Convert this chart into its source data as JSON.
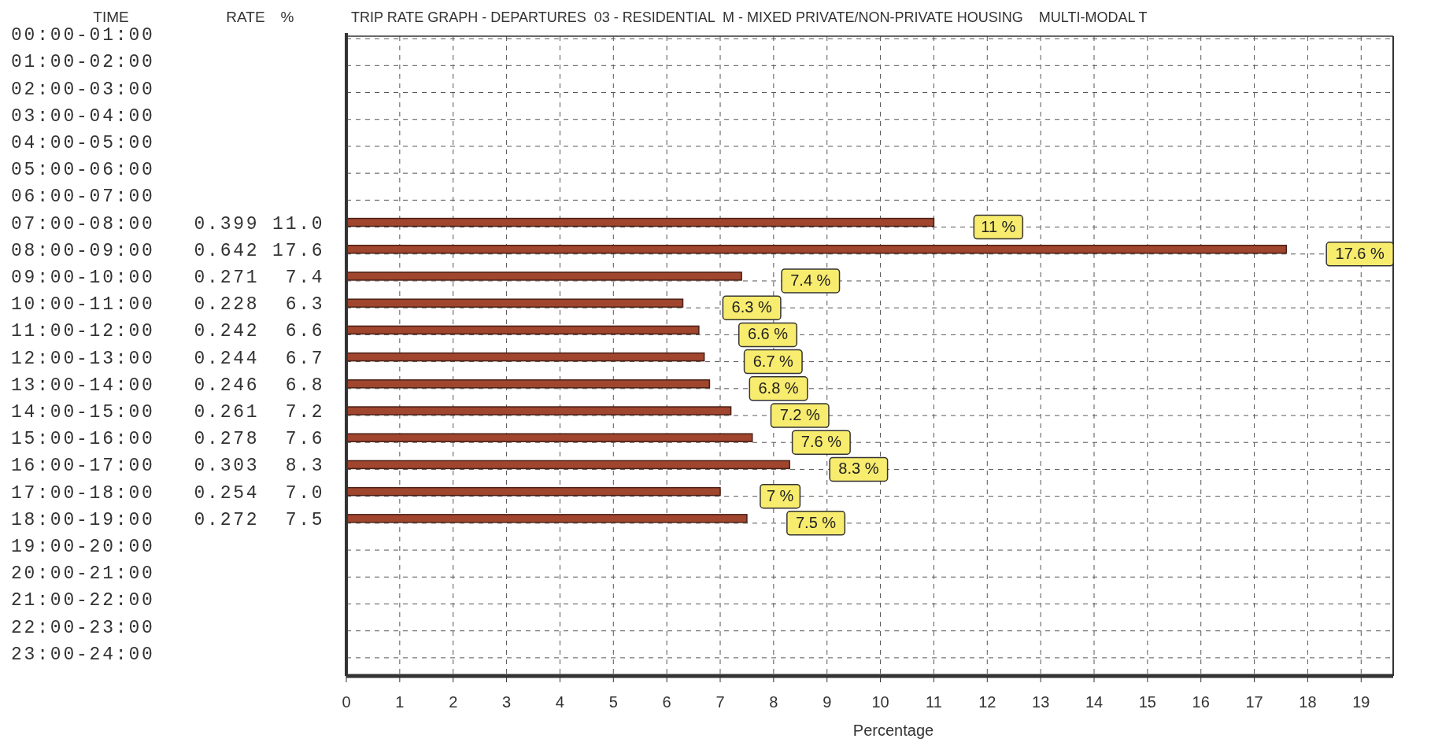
{
  "chart_data": {
    "type": "bar",
    "orientation": "horizontal",
    "title": "TRIP RATE GRAPH - DEPARTURES  03 - RESIDENTIAL  M - MIXED PRIVATE/NON-PRIVATE HOUSING    MULTI-MODAL T",
    "xlabel": "Percentage",
    "categories": [
      "00:00-01:00",
      "01:00-02:00",
      "02:00-03:00",
      "03:00-04:00",
      "04:00-05:00",
      "05:00-06:00",
      "06:00-07:00",
      "07:00-08:00   0.399 11.0",
      "08:00-09:00   0.642 17.6",
      "09:00-10:00   0.271  7.4",
      "10:00-11:00   0.228  6.3",
      "11:00-12:00   0.242  6.6",
      "12:00-13:00   0.244  6.7",
      "13:00-14:00   0.246  6.8",
      "14:00-15:00   0.261  7.2",
      "15:00-16:00   0.278  7.6",
      "16:00-17:00   0.303  8.3",
      "17:00-18:00   0.254  7.0",
      "18:00-19:00   0.272  7.5",
      "19:00-20:00",
      "20:00-21:00",
      "21:00-22:00",
      "22:00-23:00",
      "23:00-24:00"
    ],
    "values": [
      null,
      null,
      null,
      null,
      null,
      null,
      null,
      11.0,
      17.6,
      7.4,
      6.3,
      6.6,
      6.7,
      6.8,
      7.2,
      7.6,
      8.3,
      7.0,
      7.5,
      null,
      null,
      null,
      null,
      null
    ],
    "value_labels": [
      null,
      null,
      null,
      null,
      null,
      null,
      null,
      "11 %",
      "17.6 %",
      "7.4 %",
      "6.3 %",
      "6.6 %",
      "6.7 %",
      "6.8 %",
      "7.2 %",
      "7.6 %",
      "8.3 %",
      "7 %",
      "7.5 %",
      null,
      null,
      null,
      null,
      null
    ],
    "color": "#a0452e",
    "xlim": [
      0,
      19.6
    ],
    "xticks": [
      0,
      1,
      2,
      3,
      4,
      5,
      6,
      7,
      8,
      9,
      10,
      11,
      12,
      13,
      14,
      15,
      16,
      17,
      18,
      19
    ],
    "grid": true,
    "annotations": [
      "TIME",
      "RATE",
      "%"
    ]
  }
}
